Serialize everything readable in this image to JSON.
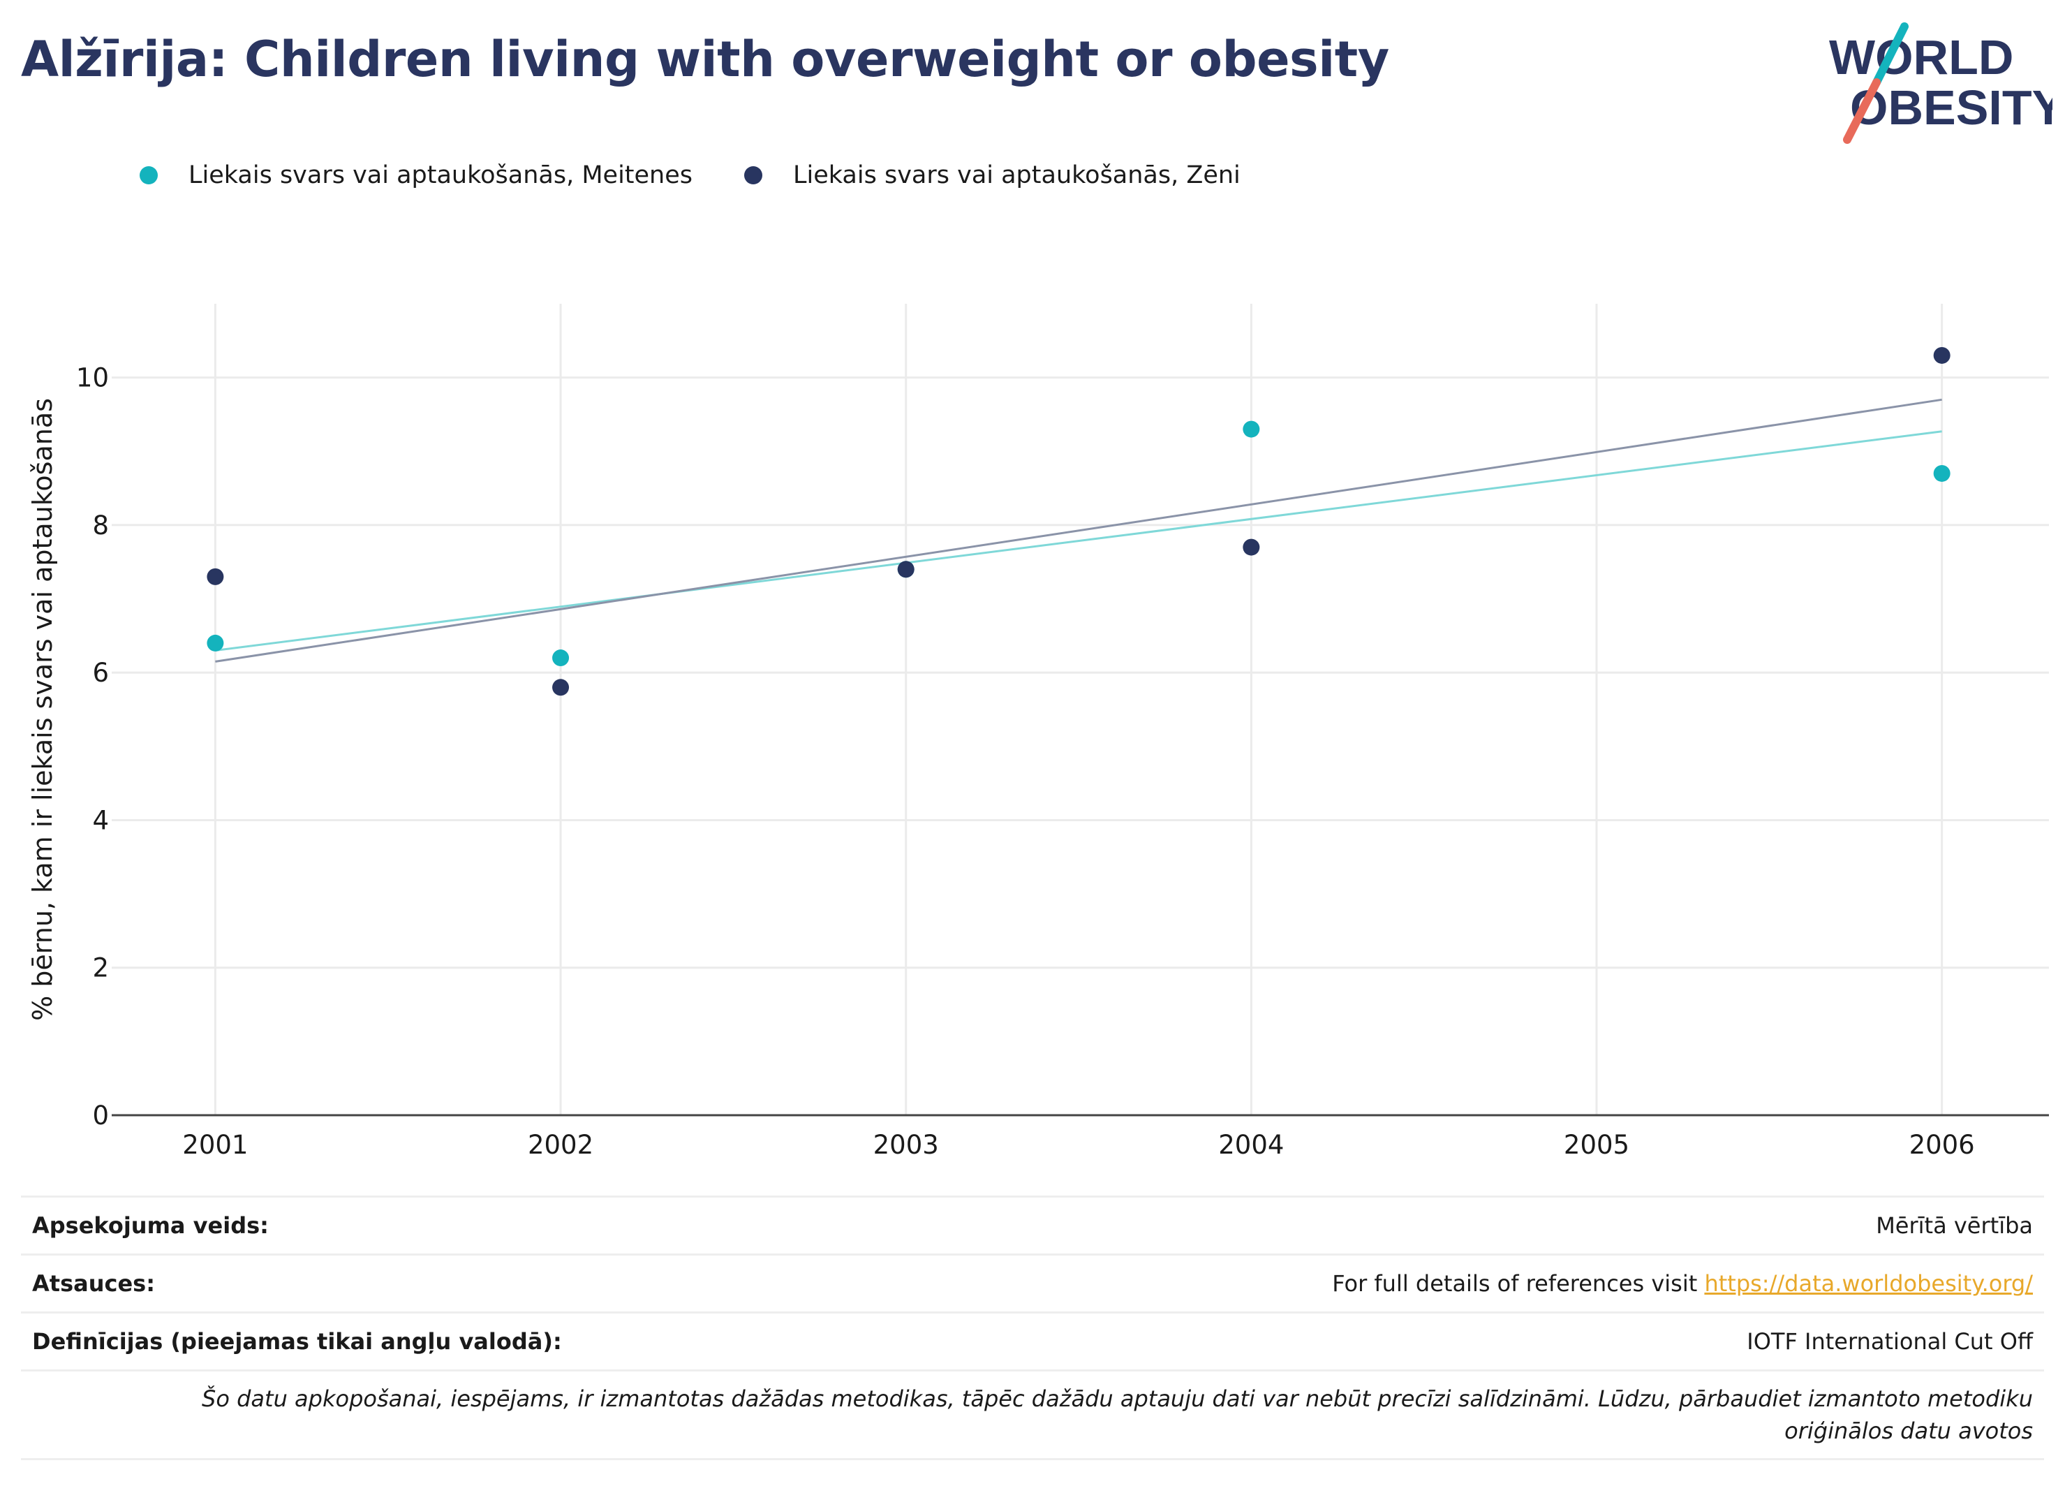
{
  "title": "Alžīrija: Children living with overweight or obesity",
  "logo": {
    "line1": "WORLD",
    "line2": "OBESITY"
  },
  "legend": [
    {
      "label": "Liekais svars vai aptaukošanās, Meitenes",
      "color": "#14b3bd"
    },
    {
      "label": "Liekais svars vai aptaukošanās, Zēni",
      "color": "#283560"
    }
  ],
  "chart_data": {
    "type": "scatter",
    "ylabel": "% bērnu, kam ir liekais svars vai aptaukošanās",
    "xlabel": "",
    "x_ticks": [
      2001,
      2002,
      2003,
      2004,
      2005,
      2006
    ],
    "xlim": [
      2000.7,
      2006.31
    ],
    "y_ticks": [
      0,
      2,
      4,
      6,
      8,
      10
    ],
    "ylim": [
      0,
      11
    ],
    "grid": true,
    "legend_position": "top-left",
    "series": [
      {
        "name": "Liekais svars vai aptaukošanās, Meitenes",
        "color": "#14b3bd",
        "trend_color": "#7fd8d8",
        "points": [
          [
            2001,
            6.4
          ],
          [
            2002,
            6.2
          ],
          [
            2003,
            7.4
          ],
          [
            2004,
            9.3
          ],
          [
            2006,
            8.7
          ]
        ],
        "trendline": [
          [
            2001,
            6.3
          ],
          [
            2006,
            9.27
          ]
        ]
      },
      {
        "name": "Liekais svars vai aptaukošanās, Zēni",
        "color": "#283560",
        "trend_color": "#8a93a8",
        "points": [
          [
            2001,
            7.3
          ],
          [
            2002,
            5.8
          ],
          [
            2003,
            7.4
          ],
          [
            2004,
            7.7
          ],
          [
            2006,
            10.3
          ]
        ],
        "trendline": [
          [
            2001,
            6.15
          ],
          [
            2006,
            9.7
          ]
        ]
      }
    ]
  },
  "meta": {
    "survey_type_label": "Apsekojuma veids:",
    "survey_type_value": "Mērītā vērtība",
    "references_label": "Atsauces:",
    "references_text": "For full details of references visit ",
    "references_link": "https://data.worldobesity.org/",
    "definitions_label": "Definīcijas (pieejamas tikai angļu valodā):",
    "definitions_value": "IOTF International Cut Off",
    "note": "Šo datu apkopošanai, iespējams, ir izmantotas dažādas metodikas, tāpēc dažādu aptauju dati var nebūt precīzi salīdzināmi. Lūdzu, pārbaudiet izmantoto metodiku oriģinālos datu avotos"
  }
}
